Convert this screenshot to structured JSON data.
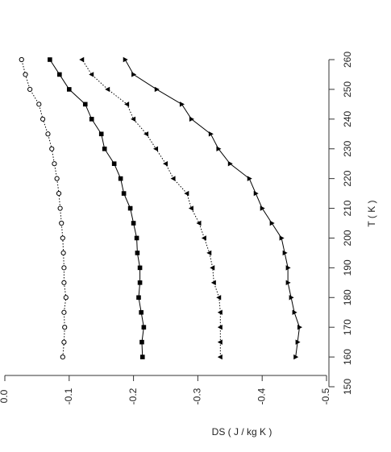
{
  "chart_data": {
    "type": "line",
    "xlabel": "T ( K )",
    "ylabel": "DS ( J / kg K )",
    "x": [
      160,
      165,
      170,
      175,
      180,
      185,
      190,
      195,
      200,
      205,
      210,
      215,
      220,
      225,
      230,
      235,
      240,
      245,
      250,
      255,
      260
    ],
    "xlim": [
      150,
      260
    ],
    "xticks": [
      150,
      160,
      170,
      180,
      190,
      200,
      210,
      220,
      230,
      240,
      250,
      260
    ],
    "ylim": [
      0,
      -0.5
    ],
    "yticks": [
      {
        "value": 0,
        "label": "0.0"
      },
      -0.1,
      -0.2,
      -0.3,
      -0.4,
      -0.5
    ],
    "series": [
      {
        "color": "#000000",
        "line": "dotted",
        "marker": "circle-open",
        "values": [
          -0.09,
          -0.092,
          -0.093,
          -0.092,
          -0.095,
          -0.092,
          -0.092,
          -0.091,
          -0.09,
          -0.088,
          -0.086,
          -0.084,
          -0.081,
          -0.077,
          -0.073,
          -0.067,
          -0.059,
          -0.053,
          -0.039,
          -0.032,
          -0.026
        ]
      },
      {
        "color": "#000000",
        "line": "solid",
        "marker": "square",
        "values": [
          -0.214,
          -0.213,
          -0.216,
          -0.212,
          -0.208,
          -0.21,
          -0.21,
          -0.206,
          -0.205,
          -0.2,
          -0.195,
          -0.185,
          -0.18,
          -0.17,
          -0.155,
          -0.15,
          -0.135,
          -0.125,
          -0.1,
          -0.085,
          -0.07
        ]
      },
      {
        "color": "#000000",
        "line": "dotted",
        "marker": "triangle-left",
        "values": [
          -0.335,
          -0.335,
          -0.335,
          -0.335,
          -0.333,
          -0.325,
          -0.323,
          -0.318,
          -0.31,
          -0.302,
          -0.29,
          -0.283,
          -0.262,
          -0.25,
          -0.235,
          -0.22,
          -0.2,
          -0.19,
          -0.16,
          -0.135,
          -0.12
        ]
      },
      {
        "color": "#000000",
        "line": "solid",
        "marker": "triangle-right",
        "values": [
          -0.452,
          -0.455,
          -0.458,
          -0.45,
          -0.445,
          -0.44,
          -0.44,
          -0.435,
          -0.43,
          -0.415,
          -0.4,
          -0.39,
          -0.38,
          -0.35,
          -0.332,
          -0.32,
          -0.29,
          -0.275,
          -0.236,
          -0.2,
          -0.187
        ]
      }
    ]
  }
}
